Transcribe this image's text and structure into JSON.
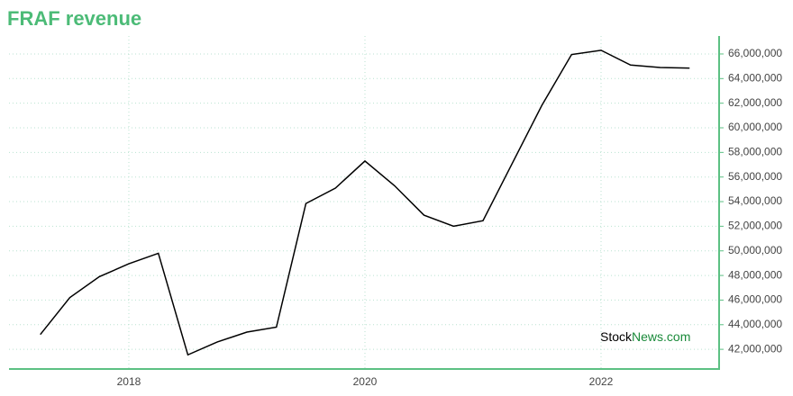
{
  "chart_data": {
    "type": "line",
    "title": "FRAF revenue",
    "watermark": [
      "Stock",
      "News.com"
    ],
    "x": [
      2017.25,
      2017.5,
      2017.75,
      2018,
      2018.25,
      2018.5,
      2018.75,
      2019,
      2019.25,
      2019.5,
      2019.75,
      2020,
      2020.25,
      2020.5,
      2020.75,
      2021,
      2021.25,
      2021.5,
      2021.75,
      2022,
      2022.25,
      2022.5,
      2022.75
    ],
    "series": [
      {
        "name": "revenue",
        "color": "#000000",
        "values": [
          43200000,
          46200000,
          47900000,
          48950000,
          49800000,
          41550000,
          42600000,
          43400000,
          43800000,
          53850000,
          55100000,
          57300000,
          55300000,
          52900000,
          52000000,
          52450000,
          57150000,
          61850000,
          65950000,
          66300000,
          65100000,
          64900000,
          64850000
        ]
      }
    ],
    "xlim": [
      2016.985,
      2023.0
    ],
    "xticks": [
      2018,
      2020,
      2022
    ],
    "ylim": [
      40400000,
      67460000
    ],
    "yticks": [
      {
        "value": 42000000,
        "label": "42,000,000"
      },
      {
        "value": 44000000,
        "label": "44,000,000"
      },
      {
        "value": 46000000,
        "label": "46,000,000"
      },
      {
        "value": 48000000,
        "label": "48,000,000"
      },
      {
        "value": 50000000,
        "label": "50,000,000"
      },
      {
        "value": 52000000,
        "label": "52,000,000"
      },
      {
        "value": 54000000,
        "label": "54,000,000"
      },
      {
        "value": 56000000,
        "label": "56,000,000"
      },
      {
        "value": 58000000,
        "label": "58,000,000"
      },
      {
        "value": 60000000,
        "label": "60,000,000"
      },
      {
        "value": 62000000,
        "label": "62,000,000"
      },
      {
        "value": 64000000,
        "label": "64,000,000"
      },
      {
        "value": 66000000,
        "label": "66,000,000"
      }
    ],
    "grid": true,
    "axis_color": "#5cc083"
  }
}
